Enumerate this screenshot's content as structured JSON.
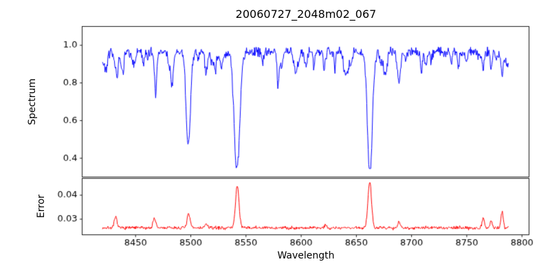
{
  "figure": {
    "title": "20060727_2048m02_067",
    "xlabel": "Wavelength",
    "background": "#ffffff",
    "frame_color": "#000000"
  },
  "chart_data": [
    {
      "id": "spectrum-panel",
      "type": "line",
      "title": "20060727_2048m02_067",
      "ylabel": "Spectrum",
      "line_color": "#0000ff",
      "xlim": [
        8401.6,
        8806.4
      ],
      "ylim": [
        0.3,
        1.1
      ],
      "yticks": [
        0.4,
        0.6,
        0.8,
        1.0
      ],
      "ytick_labels": [
        "0.4",
        "0.6",
        "0.8",
        "1.0"
      ],
      "x_start": 8420,
      "x_end": 8788,
      "x_step": 0.45,
      "continuum": 0.965,
      "noise_amplitude": 0.02,
      "clip": [
        0.345,
        1.06
      ],
      "strong_absorption_lines": [
        {
          "center": 8433.0,
          "depth": 0.1,
          "width": 1.0
        },
        {
          "center": 8468.0,
          "depth": 0.13,
          "width": 1.1
        },
        {
          "center": 8498.0,
          "depth": 0.44,
          "width": 1.9
        },
        {
          "center": 8514.0,
          "depth": 0.1,
          "width": 1.2
        },
        {
          "center": 8542.1,
          "depth": 0.61,
          "width": 2.4
        },
        {
          "center": 8582.0,
          "depth": 0.08,
          "width": 1.0
        },
        {
          "center": 8621.0,
          "depth": 0.09,
          "width": 1.1
        },
        {
          "center": 8662.1,
          "depth": 0.61,
          "width": 2.2
        },
        {
          "center": 8688.6,
          "depth": 0.17,
          "width": 1.4
        },
        {
          "center": 8713.0,
          "depth": 0.07,
          "width": 1.0
        },
        {
          "center": 8765.0,
          "depth": 0.09,
          "width": 0.9
        },
        {
          "center": 8772.0,
          "depth": 0.09,
          "width": 0.9
        },
        {
          "center": 8782.0,
          "depth": 0.11,
          "width": 1.0
        }
      ],
      "weak_lines": {
        "count": 55,
        "max_depth": 0.1
      },
      "random_seed": 42
    },
    {
      "id": "error-panel",
      "type": "line",
      "ylabel": "Error",
      "xlabel": "Wavelength",
      "line_color": "#ff0000",
      "xlim": [
        8401.6,
        8806.4
      ],
      "ylim": [
        0.0235,
        0.047
      ],
      "yticks": [
        0.03,
        0.04
      ],
      "ytick_labels": [
        "0.03",
        "0.04"
      ],
      "xticks": [
        8450,
        8500,
        8550,
        8600,
        8650,
        8700,
        8750,
        8800
      ],
      "xtick_labels": [
        "8450",
        "8500",
        "8550",
        "8600",
        "8650",
        "8700",
        "8750",
        "8800"
      ],
      "x_start": 8420,
      "x_end": 8788,
      "x_step": 0.45,
      "baseline": 0.0262,
      "noise_amplitude": 0.0005,
      "clip": [
        0.0248,
        0.0462
      ],
      "peaks": [
        {
          "center": 8432.0,
          "height": 0.0045,
          "width": 1.2
        },
        {
          "center": 8467.0,
          "height": 0.004,
          "width": 1.2
        },
        {
          "center": 8498.0,
          "height": 0.0055,
          "width": 1.4
        },
        {
          "center": 8514.0,
          "height": 0.0015,
          "width": 1.2
        },
        {
          "center": 8542.1,
          "height": 0.0175,
          "width": 1.6
        },
        {
          "center": 8622.0,
          "height": 0.0012,
          "width": 1.0
        },
        {
          "center": 8662.1,
          "height": 0.0195,
          "width": 1.6
        },
        {
          "center": 8688.6,
          "height": 0.0025,
          "width": 1.2
        },
        {
          "center": 8765.0,
          "height": 0.0042,
          "width": 1.0
        },
        {
          "center": 8772.0,
          "height": 0.003,
          "width": 1.0
        },
        {
          "center": 8782.0,
          "height": 0.0068,
          "width": 1.0
        }
      ],
      "random_seed": 7
    }
  ]
}
